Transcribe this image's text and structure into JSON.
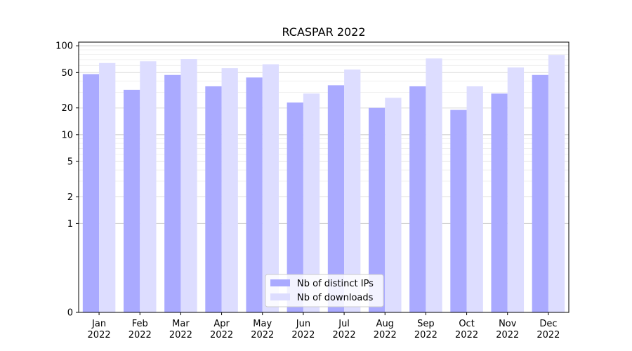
{
  "chart_data": {
    "type": "bar",
    "title": "RCASPAR 2022",
    "xlabel": "",
    "ylabel": "",
    "y_scale": "symlog",
    "ylim": [
      0,
      110
    ],
    "y_ticks": [
      0,
      1,
      2,
      5,
      10,
      20,
      50,
      100
    ],
    "y_tick_labels": [
      "0",
      "1",
      "2",
      "5",
      "10",
      "20",
      "50",
      "100"
    ],
    "grid": true,
    "legend_position": "bottom-center",
    "categories": [
      "Jan\n2022",
      "Feb\n2022",
      "Mar\n2022",
      "Apr\n2022",
      "May\n2022",
      "Jun\n2022",
      "Jul\n2022",
      "Aug\n2022",
      "Sep\n2022",
      "Oct\n2022",
      "Nov\n2022",
      "Dec\n2022"
    ],
    "series": [
      {
        "name": "Nb of distinct IPs",
        "color": "#aaaaff",
        "values": [
          48,
          32,
          47,
          35,
          44,
          23,
          36,
          20,
          35,
          19,
          29,
          47
        ]
      },
      {
        "name": "Nb of downloads",
        "color": "#ddddff",
        "values": [
          64,
          67,
          71,
          56,
          62,
          29,
          54,
          26,
          72,
          35,
          57,
          79
        ]
      }
    ]
  }
}
